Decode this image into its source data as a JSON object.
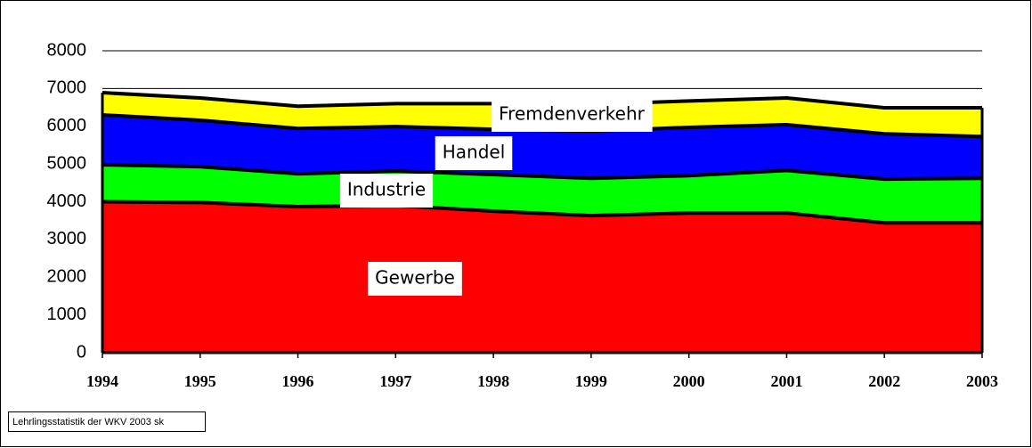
{
  "chart_data": {
    "type": "stacked_area",
    "x": [
      1994,
      1995,
      1996,
      1997,
      1998,
      1999,
      2000,
      2001,
      2002,
      2003
    ],
    "xlim": [
      1994,
      2003
    ],
    "xticks": [
      1994,
      1995,
      1996,
      1997,
      1998,
      1999,
      2000,
      2001,
      2002,
      2003
    ],
    "ylim": [
      0,
      8000
    ],
    "yticks": [
      0,
      1000,
      2000,
      3000,
      4000,
      5000,
      6000,
      7000,
      8000
    ],
    "grid": true,
    "series": [
      {
        "name": "Gewerbe",
        "color": "#ff0000",
        "values": [
          4000,
          3980,
          3870,
          3900,
          3750,
          3630,
          3700,
          3700,
          3440,
          3440
        ]
      },
      {
        "name": "Industrie",
        "color": "#00ff00",
        "values": [
          980,
          950,
          870,
          910,
          970,
          990,
          990,
          1130,
          1160,
          1180
        ]
      },
      {
        "name": "Handel",
        "color": "#0000ff",
        "values": [
          1320,
          1230,
          1200,
          1180,
          1200,
          1250,
          1280,
          1210,
          1200,
          1110
        ]
      },
      {
        "name": "Fremdenverkehr",
        "color": "#ffff00",
        "values": [
          590,
          590,
          590,
          610,
          680,
          710,
          700,
          710,
          690,
          760
        ]
      }
    ],
    "source": "Lehrlingsstatistik der WKV 2003 sk"
  }
}
